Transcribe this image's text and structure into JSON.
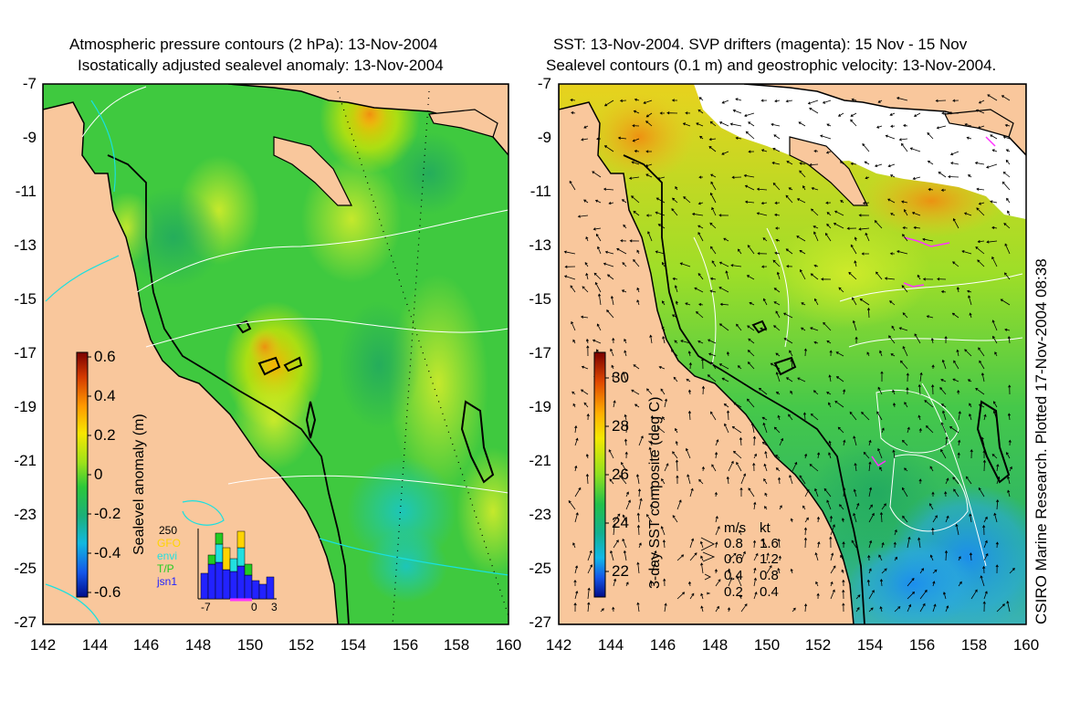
{
  "left_panel": {
    "title_line1": "Atmospheric pressure contours (2 hPa): 13-Nov-2004",
    "title_line2": "Isostatically adjusted sealevel anomaly: 13-Nov-2004",
    "y_ticks": [
      "-7",
      "-9",
      "-11",
      "-13",
      "-15",
      "-17",
      "-19",
      "-21",
      "-23",
      "-25",
      "-27"
    ],
    "x_ticks": [
      "142",
      "144",
      "146",
      "148",
      "150",
      "152",
      "154",
      "156",
      "158",
      "160"
    ],
    "colorbar": {
      "label": "Sealevel anomaly (m)",
      "ticks": [
        "0.6",
        "0.4",
        "0.2",
        "0",
        "-0.2",
        "-0.4",
        "-0.6"
      ],
      "range": [
        -0.6,
        0.6
      ]
    },
    "inset": {
      "y_label": "250",
      "series": [
        {
          "name": "GFO",
          "color": "#ffd400"
        },
        {
          "name": "envi",
          "color": "#22e0e0"
        },
        {
          "name": "T/P",
          "color": "#22cc22"
        },
        {
          "name": "jsn1",
          "color": "#2222ff"
        }
      ],
      "x_ticks": [
        "-7",
        "0",
        "3"
      ]
    }
  },
  "right_panel": {
    "title_line1": "SST: 13-Nov-2004. SVP drifters (magenta): 15 Nov - 15 Nov",
    "title_line2": "Sealevel contours (0.1 m) and geostrophic velocity: 13-Nov-2004.",
    "y_ticks": [
      "-7",
      "-9",
      "-11",
      "-13",
      "-15",
      "-17",
      "-19",
      "-21",
      "-23",
      "-25",
      "-27"
    ],
    "x_ticks": [
      "142",
      "144",
      "146",
      "148",
      "150",
      "152",
      "154",
      "156",
      "158",
      "160"
    ],
    "colorbar": {
      "label": "3-day SST composite (deg C)",
      "ticks": [
        "30",
        "28",
        "26",
        "24",
        "22"
      ],
      "range": [
        21,
        31
      ]
    },
    "velocity_key": {
      "header_ms": "m/s",
      "header_kt": "kt",
      "rows": [
        {
          "ms": "0.8",
          "kt": "1.6"
        },
        {
          "ms": "0.6",
          "kt": "1.2"
        },
        {
          "ms": "0.4",
          "kt": "0.8"
        },
        {
          "ms": "0.2",
          "kt": "0.4"
        }
      ]
    }
  },
  "credit": "CSIRO Marine Research. Plotted 17-Nov-2004 08:38",
  "colors": {
    "land": "#f9c79c",
    "sla_base": "#3fc93f",
    "sst_base": "#45c84a",
    "coast": "#000000",
    "drifter": "#ff33ff"
  }
}
